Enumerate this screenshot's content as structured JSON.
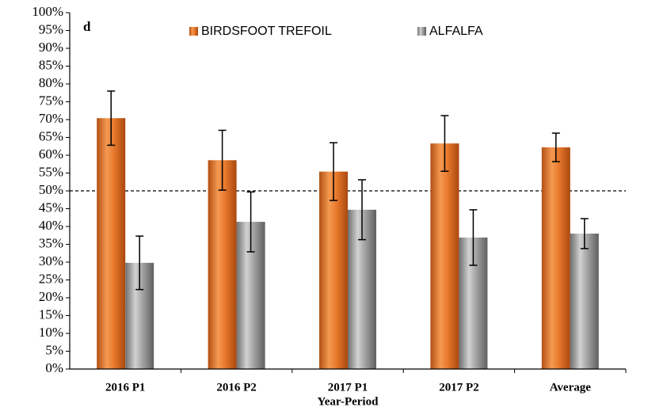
{
  "chart_data": {
    "type": "bar",
    "annotation": "d",
    "x_label": "Year-Period",
    "categories": [
      "2016 P1",
      "2016 P2",
      "2017 P1",
      "2017 P2",
      "Average"
    ],
    "series": [
      {
        "name": "BIRDSFOOT TREFOIL",
        "color": "#e8792c",
        "values": [
          70.4,
          58.6,
          55.4,
          63.3,
          62.2
        ],
        "errors": [
          7.6,
          8.4,
          8.1,
          7.8,
          4.0
        ]
      },
      {
        "name": "ALFALFA",
        "color": "#a3a3a3",
        "values": [
          29.8,
          41.3,
          44.7,
          36.9,
          38.0
        ],
        "errors": [
          7.5,
          8.4,
          8.4,
          7.8,
          4.2
        ]
      }
    ],
    "ylim": [
      0,
      100
    ],
    "yticks": [
      {
        "value": 0,
        "label": "0%"
      },
      {
        "value": 5,
        "label": "5%"
      },
      {
        "value": 10,
        "label": "10%"
      },
      {
        "value": 15,
        "label": "15%"
      },
      {
        "value": 20,
        "label": "20%"
      },
      {
        "value": 25,
        "label": "25%"
      },
      {
        "value": 30,
        "label": "30%"
      },
      {
        "value": 35,
        "label": "35%"
      },
      {
        "value": 40,
        "label": "40%"
      },
      {
        "value": 45,
        "label": "45%"
      },
      {
        "value": 50,
        "label": "50%"
      },
      {
        "value": 55,
        "label": "55%"
      },
      {
        "value": 60,
        "label": "60%"
      },
      {
        "value": 65,
        "label": "65%"
      },
      {
        "value": 70,
        "label": "70%"
      },
      {
        "value": 75,
        "label": "75%"
      },
      {
        "value": 80,
        "label": "80%"
      },
      {
        "value": 85,
        "label": "85%"
      },
      {
        "value": 90,
        "label": "90%"
      },
      {
        "value": 95,
        "label": "95%"
      },
      {
        "value": 100,
        "label": "100%"
      }
    ],
    "reference_line": 50,
    "grid": false,
    "legend": "top"
  }
}
